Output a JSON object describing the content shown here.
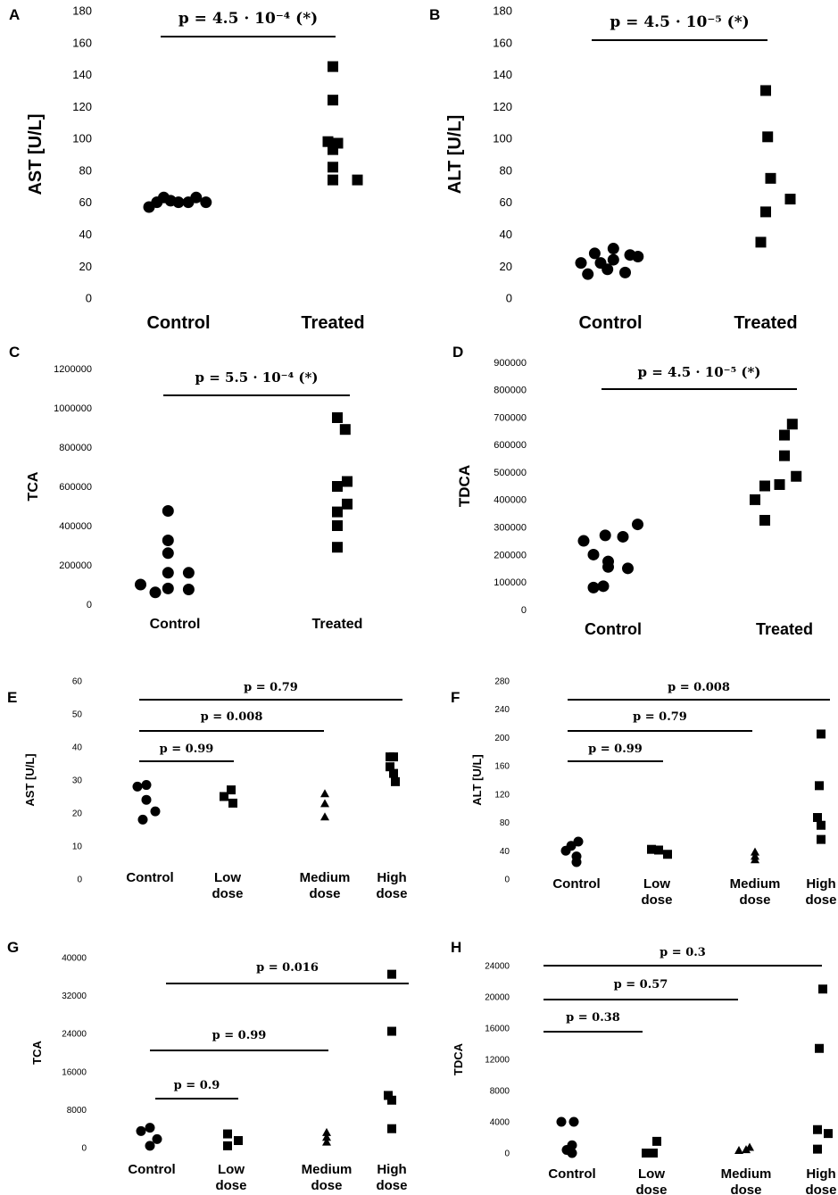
{
  "chart_data": [
    {
      "panel": "A",
      "type": "scatter",
      "ylabel": "AST [U/L]",
      "ylim": [
        0,
        180
      ],
      "yticks": [
        0,
        20,
        40,
        60,
        80,
        100,
        120,
        140,
        160,
        180
      ],
      "categories": [
        "Control",
        "Treated"
      ],
      "groups": [
        {
          "name": "Control",
          "marker": "circle",
          "points": [
            [
              -0.3,
              57
            ],
            [
              -0.22,
              60
            ],
            [
              -0.15,
              63
            ],
            [
              -0.08,
              61
            ],
            [
              0.0,
              60
            ],
            [
              0.1,
              60
            ],
            [
              0.18,
              63
            ],
            [
              0.28,
              60
            ]
          ]
        },
        {
          "name": "Treated",
          "marker": "square",
          "points": [
            [
              0.0,
              145
            ],
            [
              0.0,
              124
            ],
            [
              -0.05,
              98
            ],
            [
              0.0,
              93
            ],
            [
              0.05,
              97
            ],
            [
              0.0,
              82
            ],
            [
              0.0,
              74
            ],
            [
              0.25,
              74
            ]
          ]
        }
      ],
      "comparisons": [
        {
          "from": 0,
          "to": 1,
          "label": "p = 4.5 · 10⁻⁴ (*)"
        }
      ]
    },
    {
      "panel": "B",
      "type": "scatter",
      "ylabel": "ALT [U/L]",
      "ylim": [
        0,
        180
      ],
      "yticks": [
        0,
        20,
        40,
        60,
        80,
        100,
        120,
        140,
        160,
        180
      ],
      "categories": [
        "Control",
        "Treated"
      ],
      "groups": [
        {
          "name": "Control",
          "marker": "circle",
          "points": [
            [
              -0.3,
              22
            ],
            [
              -0.23,
              15
            ],
            [
              -0.16,
              28
            ],
            [
              -0.1,
              22
            ],
            [
              -0.03,
              18
            ],
            [
              0.03,
              24
            ],
            [
              0.03,
              31
            ],
            [
              0.15,
              16
            ],
            [
              0.2,
              27
            ],
            [
              0.28,
              26
            ]
          ]
        },
        {
          "name": "Treated",
          "marker": "square",
          "points": [
            [
              -0.05,
              35
            ],
            [
              0.0,
              54
            ],
            [
              0.02,
              101
            ],
            [
              0.0,
              130
            ],
            [
              0.05,
              75
            ],
            [
              0.25,
              62
            ]
          ]
        }
      ],
      "comparisons": [
        {
          "from": 0,
          "to": 1,
          "label": "p = 4.5 · 10⁻⁵ (*)"
        }
      ]
    },
    {
      "panel": "C",
      "type": "scatter",
      "ylabel": "TCA",
      "ylim": [
        0,
        1200000
      ],
      "yticks": [
        0,
        200000,
        400000,
        600000,
        800000,
        1000000,
        1200000
      ],
      "categories": [
        "Control",
        "Treated"
      ],
      "groups": [
        {
          "name": "Control",
          "marker": "circle",
          "points": [
            [
              -0.35,
              100000
            ],
            [
              -0.2,
              60000
            ],
            [
              -0.07,
              80000
            ],
            [
              -0.07,
              160000
            ],
            [
              -0.07,
              260000
            ],
            [
              -0.07,
              325000
            ],
            [
              -0.07,
              475000
            ],
            [
              0.14,
              160000
            ],
            [
              0.14,
              75000
            ]
          ]
        },
        {
          "name": "Treated",
          "marker": "square",
          "points": [
            [
              0.0,
              950000
            ],
            [
              0.08,
              890000
            ],
            [
              0.0,
              600000
            ],
            [
              0.1,
              625000
            ],
            [
              0.0,
              470000
            ],
            [
              0.1,
              510000
            ],
            [
              0.0,
              400000
            ],
            [
              0.0,
              290000
            ]
          ]
        }
      ],
      "comparisons": [
        {
          "from": 0,
          "to": 1,
          "label": "p = 5.5 · 10⁻⁴ (*)"
        }
      ]
    },
    {
      "panel": "D",
      "type": "scatter",
      "ylabel": "TDCA",
      "ylim": [
        0,
        900000
      ],
      "yticks": [
        0,
        100000,
        200000,
        300000,
        400000,
        500000,
        600000,
        700000,
        800000,
        900000
      ],
      "categories": [
        "Control",
        "Treated"
      ],
      "groups": [
        {
          "name": "Control",
          "marker": "circle",
          "points": [
            [
              -0.3,
              250000
            ],
            [
              -0.2,
              80000
            ],
            [
              -0.2,
              200000
            ],
            [
              -0.08,
              270000
            ],
            [
              -0.05,
              175000
            ],
            [
              -0.05,
              155000
            ],
            [
              0.1,
              265000
            ],
            [
              0.15,
              150000
            ],
            [
              0.25,
              310000
            ],
            [
              -0.1,
              85000
            ]
          ]
        },
        {
          "name": "Treated",
          "marker": "square",
          "points": [
            [
              -0.3,
              400000
            ],
            [
              -0.2,
              450000
            ],
            [
              -0.2,
              325000
            ],
            [
              -0.05,
              455000
            ],
            [
              0.0,
              560000
            ],
            [
              0.0,
              635000
            ],
            [
              0.08,
              675000
            ],
            [
              0.12,
              485000
            ]
          ]
        }
      ],
      "comparisons": [
        {
          "from": 0,
          "to": 1,
          "label": "p = 4.5 · 10⁻⁵ (*)"
        }
      ]
    },
    {
      "panel": "E",
      "type": "scatter",
      "ylabel": "AST [U/L]",
      "ylim": [
        0,
        60
      ],
      "yticks": [
        0,
        10,
        20,
        30,
        40,
        50,
        60
      ],
      "categories": [
        "Control",
        "Low dose",
        "Medium dose",
        "High dose"
      ],
      "groups": [
        {
          "name": "Control",
          "marker": "circle",
          "points": [
            [
              -0.35,
              28
            ],
            [
              -0.1,
              28.5
            ],
            [
              -0.1,
              24
            ],
            [
              -0.2,
              18
            ],
            [
              0.15,
              20.5
            ]
          ]
        },
        {
          "name": "Low dose",
          "marker": "square",
          "points": [
            [
              -0.1,
              25
            ],
            [
              0.1,
              27
            ],
            [
              0.15,
              23
            ]
          ]
        },
        {
          "name": "Medium dose",
          "marker": "triangle",
          "points": [
            [
              0.0,
              26
            ],
            [
              0.0,
              23
            ],
            [
              0.0,
              19
            ]
          ]
        },
        {
          "name": "High dose",
          "marker": "square",
          "points": [
            [
              -0.05,
              37
            ],
            [
              0.05,
              37
            ],
            [
              -0.05,
              34
            ],
            [
              0.05,
              32
            ],
            [
              0.1,
              29.5
            ]
          ]
        }
      ],
      "comparisons": [
        {
          "from": 0,
          "to": 1,
          "label": "p = 0.99"
        },
        {
          "from": 0,
          "to": 2,
          "label": "p = 0.008"
        },
        {
          "from": 0,
          "to": 3,
          "label": "p = 0.79"
        }
      ]
    },
    {
      "panel": "F",
      "type": "scatter",
      "ylabel": "ALT [U/L]",
      "ylim": [
        0,
        280
      ],
      "yticks": [
        0,
        40,
        80,
        120,
        160,
        200,
        240,
        280
      ],
      "categories": [
        "Control",
        "Low dose",
        "Medium dose",
        "High dose"
      ],
      "groups": [
        {
          "name": "Control",
          "marker": "circle",
          "points": [
            [
              -0.3,
              40
            ],
            [
              -0.15,
              47
            ],
            [
              0.05,
              53
            ],
            [
              0.0,
              32
            ],
            [
              0.0,
              24
            ]
          ]
        },
        {
          "name": "Low dose",
          "marker": "square",
          "points": [
            [
              -0.15,
              42
            ],
            [
              0.05,
              41
            ],
            [
              0.3,
              35
            ]
          ]
        },
        {
          "name": "Medium dose",
          "marker": "triangle",
          "points": [
            [
              0.0,
              39
            ],
            [
              0.0,
              33
            ],
            [
              0.0,
              28
            ]
          ]
        },
        {
          "name": "High dose",
          "marker": "square",
          "points": [
            [
              0.0,
              205
            ],
            [
              -0.05,
              132
            ],
            [
              -0.1,
              87
            ],
            [
              0.0,
              76
            ],
            [
              0.0,
              56
            ]
          ]
        }
      ],
      "comparisons": [
        {
          "from": 0,
          "to": 1,
          "label": "p = 0.99"
        },
        {
          "from": 0,
          "to": 2,
          "label": "p = 0.79"
        },
        {
          "from": 0,
          "to": 3,
          "label": "p = 0.008"
        }
      ]
    },
    {
      "panel": "G",
      "type": "scatter",
      "ylabel": "TCA",
      "ylim": [
        0,
        40000
      ],
      "yticks": [
        0,
        8000,
        16000,
        24000,
        32000,
        40000
      ],
      "categories": [
        "Control",
        "Low dose",
        "Medium dose",
        "High dose"
      ],
      "groups": [
        {
          "name": "Control",
          "marker": "circle",
          "points": [
            [
              -0.3,
              3500
            ],
            [
              -0.05,
              4200
            ],
            [
              -0.05,
              400
            ],
            [
              0.15,
              1800
            ]
          ]
        },
        {
          "name": "Low dose",
          "marker": "square",
          "points": [
            [
              -0.1,
              2900
            ],
            [
              -0.1,
              400
            ],
            [
              0.2,
              1500
            ]
          ]
        },
        {
          "name": "Medium dose",
          "marker": "triangle",
          "points": [
            [
              0.0,
              3300
            ],
            [
              0.0,
              2300
            ],
            [
              0.0,
              1300
            ]
          ]
        },
        {
          "name": "High dose",
          "marker": "square",
          "points": [
            [
              0.0,
              36500
            ],
            [
              0.0,
              24500
            ],
            [
              -0.1,
              11000
            ],
            [
              0.0,
              10000
            ],
            [
              0.0,
              4000
            ]
          ]
        }
      ],
      "comparisons": [
        {
          "from": 0,
          "to": 1,
          "label": "p = 0.9"
        },
        {
          "from": 0,
          "to": 2,
          "label": "p = 0.99"
        },
        {
          "from": 0,
          "to": 3,
          "label": "p = 0.016"
        }
      ]
    },
    {
      "panel": "H",
      "type": "scatter",
      "ylabel": "TDCA",
      "ylim": [
        0,
        24000
      ],
      "yticks": [
        0,
        4000,
        8000,
        12000,
        16000,
        20000,
        24000
      ],
      "categories": [
        "Control",
        "Low dose",
        "Medium dose",
        "High dose"
      ],
      "groups": [
        {
          "name": "Control",
          "marker": "circle",
          "points": [
            [
              -0.3,
              4000
            ],
            [
              -0.15,
              400
            ],
            [
              0.0,
              1000
            ],
            [
              0.05,
              4000
            ],
            [
              0.0,
              0
            ]
          ]
        },
        {
          "name": "Low dose",
          "marker": "square",
          "points": [
            [
              -0.15,
              0
            ],
            [
              0.05,
              0
            ],
            [
              0.15,
              1500
            ]
          ]
        },
        {
          "name": "Medium dose",
          "marker": "triangle",
          "points": [
            [
              -0.2,
              400
            ],
            [
              0.0,
              500
            ],
            [
              0.1,
              800
            ]
          ]
        },
        {
          "name": "High dose",
          "marker": "square",
          "points": [
            [
              -0.1,
              3000
            ],
            [
              0.05,
              21000
            ],
            [
              -0.05,
              13400
            ],
            [
              -0.1,
              500
            ],
            [
              0.2,
              2500
            ]
          ]
        }
      ],
      "comparisons": [
        {
          "from": 0,
          "to": 1,
          "label": "p = 0.38"
        },
        {
          "from": 0,
          "to": 2,
          "label": "p = 0.57"
        },
        {
          "from": 0,
          "to": 3,
          "label": "p = 0.3"
        }
      ]
    }
  ]
}
